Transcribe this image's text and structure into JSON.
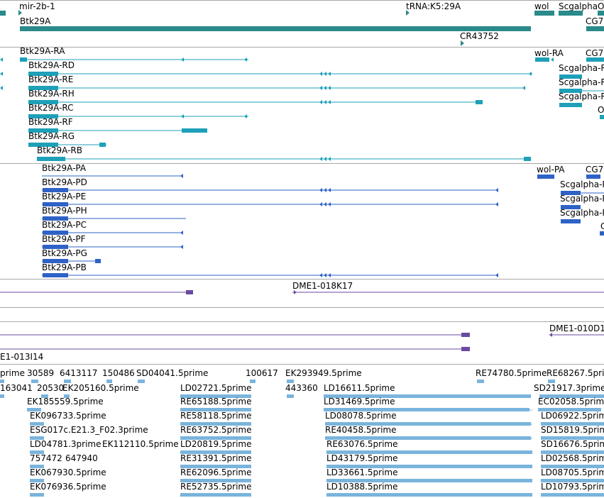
{
  "colors": {
    "gene": "#2b8a8a",
    "transcript": "#1ea0b8",
    "cds": "#2e62c6",
    "clone": "#6a4aa2",
    "est": "#7ab4dc",
    "separator": "#a8a8a8"
  },
  "tracks": {
    "genes": [
      {
        "label": "mir-2b-1"
      },
      {
        "label": "Btk29A"
      },
      {
        "label": "tRNA:K5:29A"
      },
      {
        "label": "wol"
      },
      {
        "label": "Scgalpha"
      },
      {
        "label": "O"
      },
      {
        "label": "CG7"
      },
      {
        "label": "CR43752"
      }
    ],
    "transcripts": [
      {
        "label": "Btk29A-RA"
      },
      {
        "label": "Btk29A-RD"
      },
      {
        "label": "Btk29A-RE"
      },
      {
        "label": "Btk29A-RH"
      },
      {
        "label": "Btk29A-RC"
      },
      {
        "label": "Btk29A-RF"
      },
      {
        "label": "Btk29A-RG"
      },
      {
        "label": "Btk29A-RB"
      },
      {
        "label": "wol-RA"
      },
      {
        "label": "CG7"
      },
      {
        "label": "Scgalpha-R"
      },
      {
        "label": "Scgalpha-R"
      },
      {
        "label": "Scgalpha-R"
      },
      {
        "label": "O"
      }
    ],
    "proteins": [
      {
        "label": "Btk29A-PA"
      },
      {
        "label": "Btk29A-PD"
      },
      {
        "label": "Btk29A-PE"
      },
      {
        "label": "Btk29A-PH"
      },
      {
        "label": "Btk29A-PC"
      },
      {
        "label": "Btk29A-PF"
      },
      {
        "label": "Btk29A-PG"
      },
      {
        "label": "Btk29A-PB"
      },
      {
        "label": "wol-PA"
      },
      {
        "label": "CG7"
      },
      {
        "label": "Scgalpha-P"
      },
      {
        "label": "Scgalpha-P"
      },
      {
        "label": "Scgalpha-P"
      },
      {
        "label": "C"
      }
    ],
    "clones": [
      {
        "label": "DME1-018K17"
      },
      {
        "label": "DME1-010D1"
      },
      {
        "label": "E1-013I14"
      }
    ],
    "ests": [
      {
        "label": "prime"
      },
      {
        "label": "30589"
      },
      {
        "label": "6413117"
      },
      {
        "label": "150486"
      },
      {
        "label": "SD04041.5prime"
      },
      {
        "label": "100617"
      },
      {
        "label": "EK293949.5prime"
      },
      {
        "label": "RE74780.5prime"
      },
      {
        "label": "RE68267.5pri"
      },
      {
        "label": "163041"
      },
      {
        "label": "20530"
      },
      {
        "label": "EK205160.5prime"
      },
      {
        "label": "LD02721.5prime"
      },
      {
        "label": "443360"
      },
      {
        "label": "LD16611.5prime"
      },
      {
        "label": "SD21917.3prime"
      },
      {
        "label": "EK185559.5prime"
      },
      {
        "label": "RE65188.5prime"
      },
      {
        "label": "LD31469.5prime"
      },
      {
        "label": "EC02058.5prime"
      },
      {
        "label": "EK096733.5prime"
      },
      {
        "label": "RE58118.5prime"
      },
      {
        "label": "LD08078.5prime"
      },
      {
        "label": "LD06922.5prime"
      },
      {
        "label": "ESG017c.E21.3_F02.3prime"
      },
      {
        "label": "RE63752.5prime"
      },
      {
        "label": "RE40458.5prime"
      },
      {
        "label": "SD15819.5prime"
      },
      {
        "label": "LD04781.3prime"
      },
      {
        "label": "EK112110.5prime"
      },
      {
        "label": "LD20819.5prime"
      },
      {
        "label": "RE63076.5prime"
      },
      {
        "label": "SD16676.5prime"
      },
      {
        "label": "757472"
      },
      {
        "label": "647940"
      },
      {
        "label": "RE31391.5prime"
      },
      {
        "label": "LD43179.5prime"
      },
      {
        "label": "LD02568.5prime"
      },
      {
        "label": "EK067930.5prime"
      },
      {
        "label": "RE62096.5prime"
      },
      {
        "label": "LD33661.5prime"
      },
      {
        "label": "LD08705.5prime"
      },
      {
        "label": "EK076936.5prime"
      },
      {
        "label": "RE52735.5prime"
      },
      {
        "label": "LD10388.5prime"
      },
      {
        "label": "LD10793.5prime"
      }
    ]
  }
}
